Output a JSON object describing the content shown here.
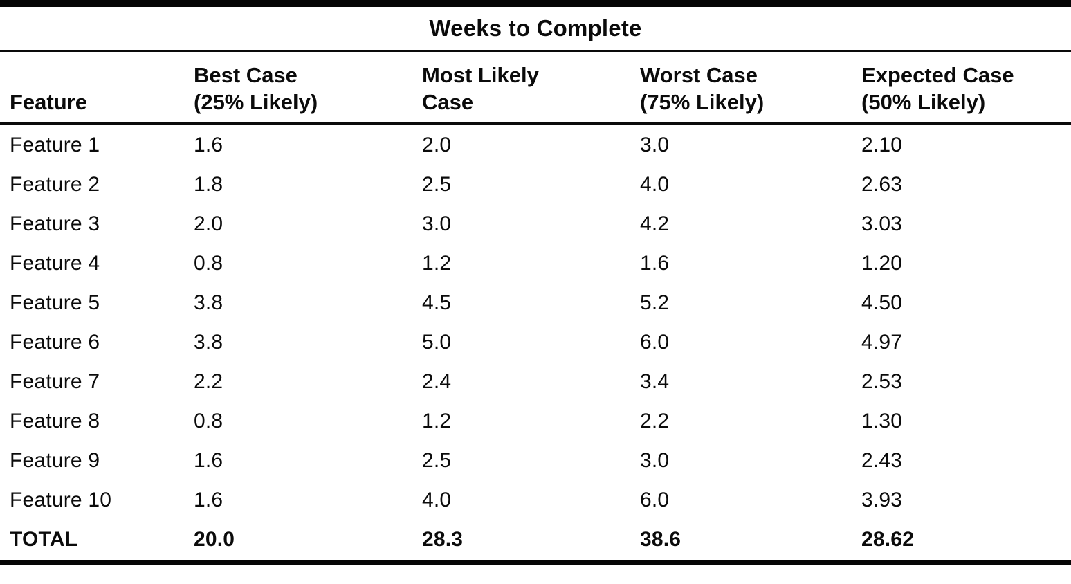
{
  "table": {
    "spanner_title": "Weeks to Complete",
    "columns": [
      "Feature",
      "Best Case\n(25% Likely)",
      "Most Likely\nCase",
      "Worst Case\n(75% Likely)",
      "Expected Case\n(50% Likely)"
    ],
    "rows": [
      {
        "feature": "Feature 1",
        "best": "1.6",
        "likely": "2.0",
        "worst": "3.0",
        "expected": "2.10"
      },
      {
        "feature": "Feature 2",
        "best": "1.8",
        "likely": "2.5",
        "worst": "4.0",
        "expected": "2.63"
      },
      {
        "feature": "Feature 3",
        "best": "2.0",
        "likely": "3.0",
        "worst": "4.2",
        "expected": "3.03"
      },
      {
        "feature": "Feature 4",
        "best": "0.8",
        "likely": "1.2",
        "worst": "1.6",
        "expected": "1.20"
      },
      {
        "feature": "Feature 5",
        "best": "3.8",
        "likely": "4.5",
        "worst": "5.2",
        "expected": "4.50"
      },
      {
        "feature": "Feature 6",
        "best": "3.8",
        "likely": "5.0",
        "worst": "6.0",
        "expected": "4.97"
      },
      {
        "feature": "Feature 7",
        "best": "2.2",
        "likely": "2.4",
        "worst": "3.4",
        "expected": "2.53"
      },
      {
        "feature": "Feature 8",
        "best": "0.8",
        "likely": "1.2",
        "worst": "2.2",
        "expected": "1.30"
      },
      {
        "feature": "Feature 9",
        "best": "1.6",
        "likely": "2.5",
        "worst": "3.0",
        "expected": "2.43"
      },
      {
        "feature": "Feature 10",
        "best": "1.6",
        "likely": "4.0",
        "worst": "6.0",
        "expected": "3.93"
      }
    ],
    "total": {
      "feature": "TOTAL",
      "best": "20.0",
      "likely": "28.3",
      "worst": "38.6",
      "expected": "28.62"
    }
  }
}
